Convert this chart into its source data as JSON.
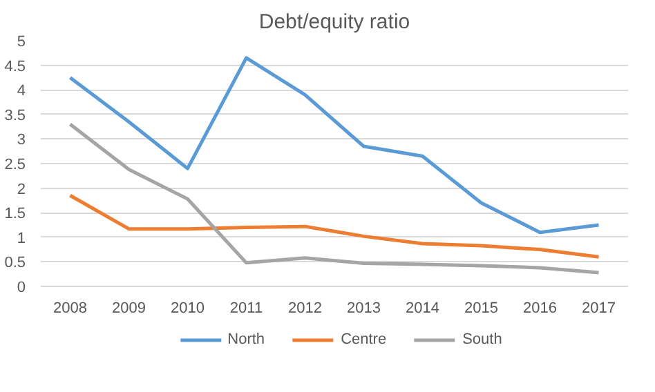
{
  "chart_data": {
    "type": "line",
    "title": "Debt/equity ratio",
    "categories": [
      "2008",
      "2009",
      "2010",
      "2011",
      "2012",
      "2013",
      "2014",
      "2015",
      "2016",
      "2017"
    ],
    "series": [
      {
        "name": "North",
        "color": "#5b9bd5",
        "values": [
          4.25,
          3.35,
          2.4,
          4.65,
          3.9,
          2.85,
          2.65,
          1.7,
          1.1,
          1.25
        ]
      },
      {
        "name": "Centre",
        "color": "#ed7d31",
        "values": [
          1.85,
          1.17,
          1.17,
          1.2,
          1.22,
          1.02,
          0.87,
          0.83,
          0.75,
          0.6
        ]
      },
      {
        "name": "South",
        "color": "#a5a5a5",
        "values": [
          3.3,
          2.38,
          1.78,
          0.48,
          0.58,
          0.47,
          0.45,
          0.42,
          0.38,
          0.28
        ]
      }
    ],
    "ylim": [
      0,
      5
    ],
    "yticks": [
      0,
      0.5,
      1,
      1.5,
      2,
      2.5,
      3,
      3.5,
      4,
      4.5,
      5
    ],
    "grid": "y",
    "legend": "bottom",
    "marker": "none",
    "line_style": "solid"
  }
}
